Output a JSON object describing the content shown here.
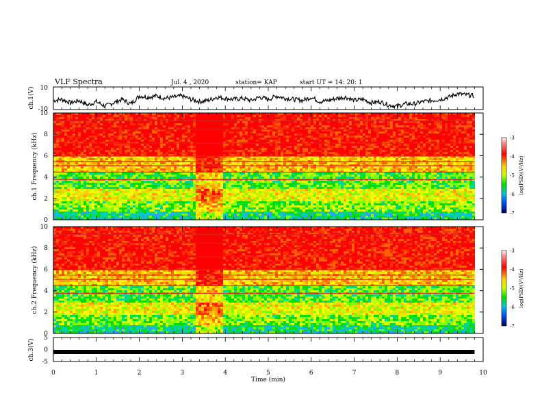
{
  "header": {
    "title": "VLF Spectra",
    "date": "Jul. 4 , 2020",
    "station": "station= KAP",
    "start": "start UT = 14: 20: 1"
  },
  "chart_data": [
    {
      "type": "line",
      "panel": "ch1-waveform",
      "ylabel": "ch.1(V)",
      "ylim": [
        -10,
        10
      ],
      "yticks": [
        "10",
        "-10"
      ],
      "xlim": [
        0,
        10
      ],
      "series": [
        {
          "x": [
            0,
            0.2,
            0.4,
            0.6,
            0.8,
            1.0,
            1.2,
            1.4,
            1.6,
            1.8,
            2.0,
            2.2,
            2.4,
            2.6,
            2.8,
            3.0,
            3.2,
            3.4,
            3.6,
            3.8,
            4.0,
            4.2,
            4.4,
            4.6,
            4.8,
            5.0,
            5.2,
            5.4,
            5.6,
            5.8,
            6.0,
            6.2,
            6.4,
            6.6,
            6.8,
            7.0,
            7.2,
            7.4,
            7.6,
            7.8,
            8.0,
            8.2,
            8.4,
            8.6,
            8.8,
            9.0,
            9.2,
            9.4,
            9.6,
            9.8
          ],
          "values": [
            -2,
            -1,
            -4,
            -2,
            -6,
            -3,
            -7,
            -4,
            -1,
            -5,
            2,
            1,
            2,
            0,
            1,
            2,
            -1,
            -3,
            -2,
            1,
            0,
            -1,
            0,
            -2,
            1,
            -1,
            2,
            0,
            -1,
            -2,
            1,
            -3,
            -2,
            0,
            1,
            -2,
            -1,
            -4,
            -3,
            -6,
            -7,
            -5,
            -5,
            -3,
            -2,
            -1,
            1,
            4,
            3,
            2
          ]
        }
      ]
    },
    {
      "type": "heatmap",
      "panel": "ch1-spectrogram",
      "ylabel": "ch.1 Frequency (kHz)",
      "ylim": [
        0,
        10
      ],
      "yticks": [
        "0",
        "2",
        "4",
        "6",
        "8",
        "10"
      ],
      "xlim": [
        0,
        10
      ],
      "colorbar": {
        "label": "log(PSD)(V²/Hz)",
        "range": [
          -7,
          -3
        ],
        "ticks": [
          "-3",
          "-4",
          "-5",
          "-6",
          "-7"
        ]
      },
      "note_band": {
        "x": [
          3.25,
          3.9
        ]
      }
    },
    {
      "type": "heatmap",
      "panel": "ch2-spectrogram",
      "ylabel": "ch.2 Frequency (kHz)",
      "ylim": [
        0,
        10
      ],
      "yticks": [
        "0",
        "2",
        "4",
        "6",
        "8",
        "10"
      ],
      "xlim": [
        0,
        10
      ],
      "colorbar": {
        "label": "log(PSD)(V²/Hz)",
        "range": [
          -7,
          -3
        ],
        "ticks": [
          "-3",
          "-4",
          "-5",
          "-6",
          "-7"
        ]
      },
      "note_band": {
        "x": [
          3.25,
          3.9
        ]
      }
    },
    {
      "type": "line",
      "panel": "ch3-waveform",
      "ylabel": "ch.3(V)",
      "ylim": [
        -5,
        5
      ],
      "yticks": [
        "5",
        "0",
        "-5"
      ],
      "xlim": [
        0,
        10
      ],
      "series": [
        {
          "x": [
            0,
            9.8
          ],
          "values": [
            -1,
            -1
          ]
        }
      ]
    }
  ],
  "xaxis": {
    "label": "Time (min)",
    "ticks": [
      "0",
      "1",
      "2",
      "3",
      "4",
      "5",
      "6",
      "7",
      "8",
      "9",
      "10"
    ]
  },
  "colors": {
    "ink": "#000000",
    "background": "#ffffff"
  }
}
